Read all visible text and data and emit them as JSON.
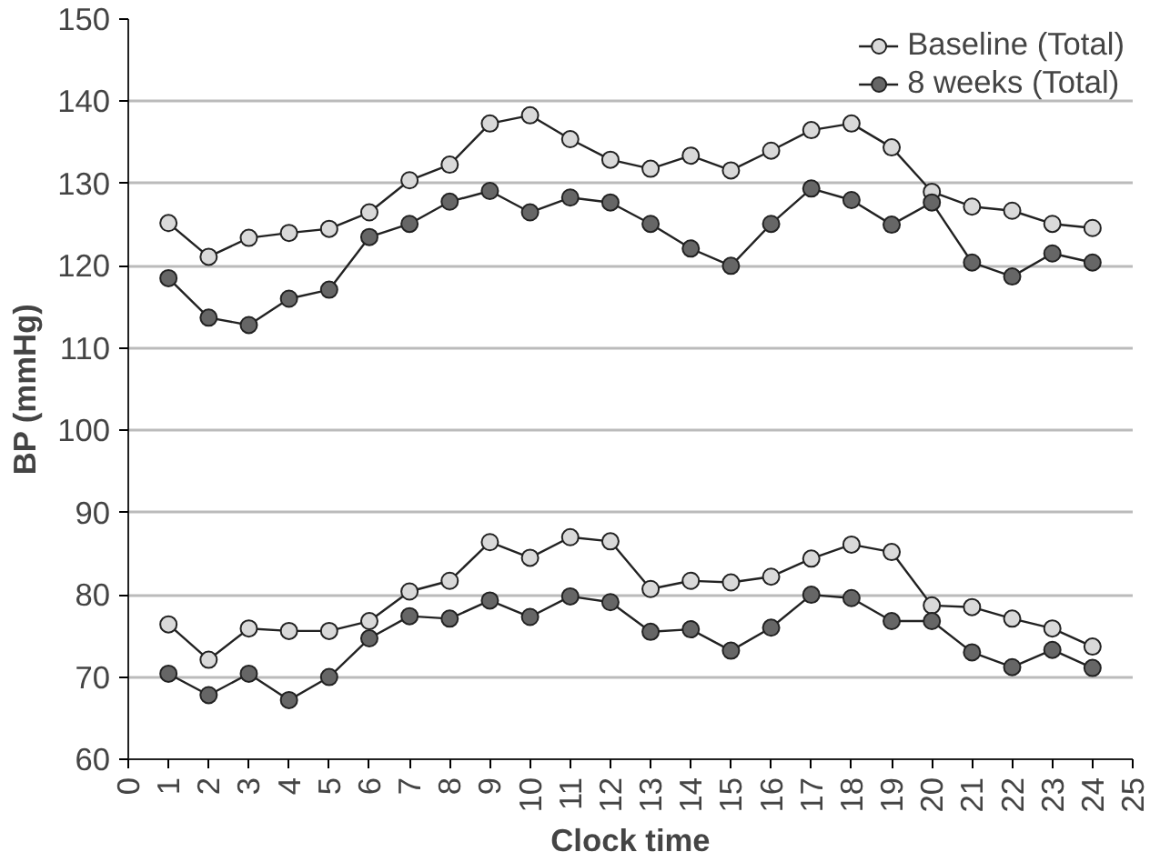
{
  "chart_data": {
    "type": "line",
    "xlabel": "Clock time",
    "ylabel": "BP (mmHg)",
    "x": [
      1,
      2,
      3,
      4,
      5,
      6,
      7,
      8,
      9,
      10,
      11,
      12,
      13,
      14,
      15,
      16,
      17,
      18,
      19,
      20,
      21,
      22,
      23,
      24
    ],
    "xlim": [
      0,
      25
    ],
    "xticks": [
      0,
      1,
      2,
      3,
      4,
      5,
      6,
      7,
      8,
      9,
      10,
      11,
      12,
      13,
      14,
      15,
      16,
      17,
      18,
      19,
      20,
      21,
      22,
      23,
      24,
      25
    ],
    "ylim": [
      60,
      150
    ],
    "yticks": [
      60,
      70,
      80,
      90,
      100,
      110,
      120,
      130,
      140,
      150
    ],
    "grid": "y",
    "legend": "top right",
    "marker": "circle",
    "line_style": "solid",
    "series": [
      {
        "name": "Baseline (Total)",
        "color": "#d9d9d9",
        "values": [
          125.2,
          121.1,
          123.4,
          124,
          124.5,
          126.5,
          130.4,
          132.3,
          137.3,
          138.3,
          135.4,
          132.9,
          131.8,
          133.4,
          131.6,
          134,
          136.5,
          137.3,
          134.4,
          129,
          127.2,
          126.7,
          125.1,
          124.6
        ]
      },
      {
        "name": "8 weeks (Total)",
        "color": "#666666",
        "values": [
          118.5,
          113.7,
          112.8,
          116,
          117.1,
          123.5,
          125.1,
          127.8,
          129.1,
          126.5,
          128.3,
          127.7,
          125.1,
          122.1,
          120,
          125.1,
          129.4,
          128,
          125,
          127.7,
          120.4,
          118.7,
          121.5,
          120.4
        ]
      },
      {
        "color": "#d9d9d9",
        "values": [
          76.4,
          72.1,
          75.9,
          75.6,
          75.6,
          76.8,
          80.4,
          81.7,
          86.4,
          84.5,
          87,
          86.5,
          80.7,
          81.7,
          81.5,
          82.2,
          84.4,
          86.1,
          85.2,
          78.7,
          78.5,
          77.1,
          75.9,
          73.7
        ]
      },
      {
        "color": "#666666",
        "values": [
          70.4,
          67.8,
          70.4,
          67.2,
          70,
          74.7,
          77.4,
          77.1,
          79.3,
          77.3,
          79.8,
          79.1,
          75.5,
          75.8,
          73.2,
          76,
          80,
          79.6,
          76.8,
          76.8,
          73,
          71.2,
          73.3,
          71.1
        ]
      }
    ]
  }
}
